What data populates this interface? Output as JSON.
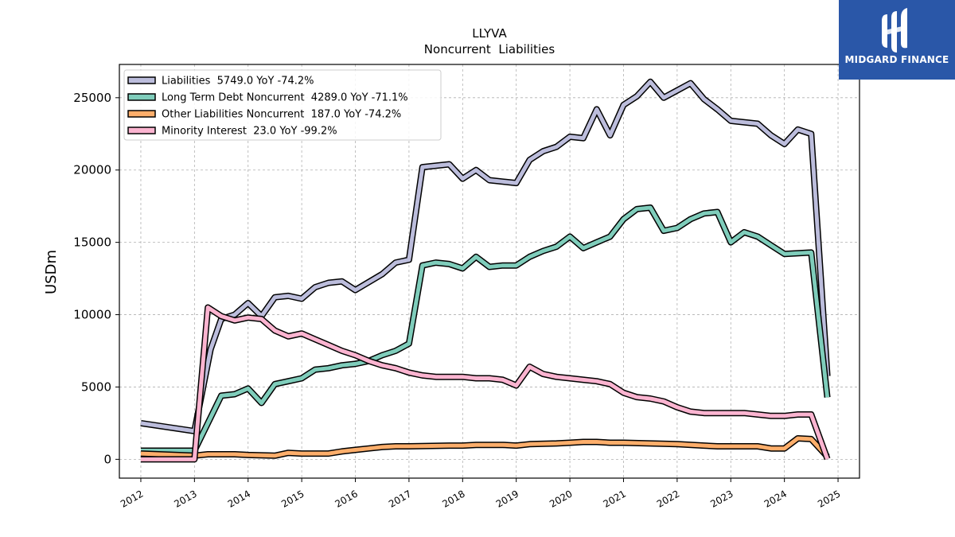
{
  "chart_data": {
    "type": "line",
    "title": "LLYVA",
    "subtitle": "Noncurrent  Liabilities",
    "ylabel": "USDm",
    "xlabel": "",
    "xlim": [
      2011.6,
      2025.4
    ],
    "ylim": [
      -1300,
      27300
    ],
    "x_ticks": [
      2012,
      2013,
      2014,
      2015,
      2016,
      2017,
      2018,
      2019,
      2020,
      2021,
      2022,
      2023,
      2024,
      2025
    ],
    "x_tick_labels": [
      "2012",
      "2013",
      "2014",
      "2015",
      "2016",
      "2017",
      "2018",
      "2019",
      "2020",
      "2021",
      "2022",
      "2023",
      "2024",
      "2025"
    ],
    "y_ticks": [
      0,
      5000,
      10000,
      15000,
      20000,
      25000
    ],
    "y_tick_labels": [
      "0",
      "5000",
      "10000",
      "15000",
      "20000",
      "25000"
    ],
    "grid": true,
    "legend_position": "top-left",
    "series": [
      {
        "name": "Liabilities",
        "legend_label": "Liabilities  5749.0 YoY -74.2%",
        "color": "#bcbddc",
        "points": [
          [
            2012.0,
            2500
          ],
          [
            2013.0,
            1950
          ],
          [
            2013.3,
            7600
          ],
          [
            2013.5,
            9700
          ],
          [
            2013.75,
            10000
          ],
          [
            2014.0,
            10800
          ],
          [
            2014.25,
            9900
          ],
          [
            2014.5,
            11200
          ],
          [
            2014.75,
            11300
          ],
          [
            2015.0,
            11100
          ],
          [
            2015.25,
            11900
          ],
          [
            2015.5,
            12200
          ],
          [
            2015.75,
            12300
          ],
          [
            2016.0,
            11700
          ],
          [
            2016.5,
            12800
          ],
          [
            2016.75,
            13600
          ],
          [
            2017.0,
            13800
          ],
          [
            2017.25,
            20200
          ],
          [
            2017.75,
            20400
          ],
          [
            2018.0,
            19400
          ],
          [
            2018.25,
            20000
          ],
          [
            2018.5,
            19300
          ],
          [
            2018.75,
            19200
          ],
          [
            2019.0,
            19100
          ],
          [
            2019.25,
            20700
          ],
          [
            2019.5,
            21300
          ],
          [
            2019.75,
            21600
          ],
          [
            2020.0,
            22300
          ],
          [
            2020.25,
            22200
          ],
          [
            2020.5,
            24200
          ],
          [
            2020.75,
            22400
          ],
          [
            2021.0,
            24500
          ],
          [
            2021.25,
            25100
          ],
          [
            2021.5,
            26100
          ],
          [
            2021.75,
            25000
          ],
          [
            2022.0,
            25500
          ],
          [
            2022.25,
            26000
          ],
          [
            2022.5,
            24900
          ],
          [
            2022.75,
            24200
          ],
          [
            2023.0,
            23400
          ],
          [
            2023.5,
            23200
          ],
          [
            2023.75,
            22400
          ],
          [
            2024.0,
            21800
          ],
          [
            2024.25,
            22800
          ],
          [
            2024.5,
            22500
          ],
          [
            2024.8,
            5749
          ]
        ]
      },
      {
        "name": "Long Term Debt Noncurrent",
        "legend_label": "Long Term Debt Noncurrent  4289.0 YoY -71.1%",
        "color": "#7fcdbb",
        "points": [
          [
            2012.0,
            600
          ],
          [
            2013.0,
            600
          ],
          [
            2013.25,
            2500
          ],
          [
            2013.5,
            4400
          ],
          [
            2013.75,
            4500
          ],
          [
            2014.0,
            4900
          ],
          [
            2014.25,
            3900
          ],
          [
            2014.5,
            5200
          ],
          [
            2014.75,
            5400
          ],
          [
            2015.0,
            5600
          ],
          [
            2015.25,
            6200
          ],
          [
            2015.5,
            6300
          ],
          [
            2015.75,
            6500
          ],
          [
            2016.0,
            6600
          ],
          [
            2016.25,
            6800
          ],
          [
            2016.5,
            7200
          ],
          [
            2016.75,
            7500
          ],
          [
            2017.0,
            8000
          ],
          [
            2017.25,
            13400
          ],
          [
            2017.5,
            13600
          ],
          [
            2017.75,
            13500
          ],
          [
            2018.0,
            13200
          ],
          [
            2018.25,
            14000
          ],
          [
            2018.5,
            13300
          ],
          [
            2018.75,
            13400
          ],
          [
            2019.0,
            13400
          ],
          [
            2019.25,
            14000
          ],
          [
            2019.5,
            14400
          ],
          [
            2019.75,
            14700
          ],
          [
            2020.0,
            15400
          ],
          [
            2020.25,
            14600
          ],
          [
            2020.5,
            15000
          ],
          [
            2020.75,
            15400
          ],
          [
            2021.0,
            16600
          ],
          [
            2021.25,
            17300
          ],
          [
            2021.5,
            17400
          ],
          [
            2021.75,
            15800
          ],
          [
            2022.0,
            16000
          ],
          [
            2022.25,
            16600
          ],
          [
            2022.5,
            17000
          ],
          [
            2022.75,
            17100
          ],
          [
            2023.0,
            15000
          ],
          [
            2023.25,
            15700
          ],
          [
            2023.5,
            15400
          ],
          [
            2023.75,
            14800
          ],
          [
            2024.0,
            14200
          ],
          [
            2024.5,
            14300
          ],
          [
            2024.8,
            4289
          ]
        ]
      },
      {
        "name": "Other Liabilities Noncurrent",
        "legend_label": "Other Liabilities Noncurrent  187.0 YoY -74.2%",
        "color": "#fdae6b",
        "points": [
          [
            2012.0,
            400
          ],
          [
            2013.0,
            250
          ],
          [
            2013.25,
            350
          ],
          [
            2013.75,
            350
          ],
          [
            2014.0,
            300
          ],
          [
            2014.5,
            250
          ],
          [
            2014.75,
            450
          ],
          [
            2015.0,
            400
          ],
          [
            2015.5,
            400
          ],
          [
            2015.75,
            550
          ],
          [
            2016.0,
            650
          ],
          [
            2016.25,
            750
          ],
          [
            2016.5,
            850
          ],
          [
            2016.75,
            900
          ],
          [
            2017.0,
            900
          ],
          [
            2017.75,
            950
          ],
          [
            2018.0,
            950
          ],
          [
            2018.25,
            1000
          ],
          [
            2018.75,
            1000
          ],
          [
            2019.0,
            950
          ],
          [
            2019.25,
            1050
          ],
          [
            2019.75,
            1100
          ],
          [
            2020.0,
            1150
          ],
          [
            2020.25,
            1200
          ],
          [
            2020.5,
            1200
          ],
          [
            2020.75,
            1150
          ],
          [
            2021.0,
            1150
          ],
          [
            2021.5,
            1100
          ],
          [
            2022.0,
            1050
          ],
          [
            2022.5,
            950
          ],
          [
            2022.75,
            900
          ],
          [
            2023.0,
            900
          ],
          [
            2023.5,
            900
          ],
          [
            2023.75,
            750
          ],
          [
            2024.0,
            750
          ],
          [
            2024.25,
            1450
          ],
          [
            2024.5,
            1400
          ],
          [
            2024.8,
            187
          ]
        ]
      },
      {
        "name": "Minority Interest",
        "legend_label": "Minority Interest  23.0 YoY -99.2%",
        "color": "#fbb4d0",
        "points": [
          [
            2012.0,
            0
          ],
          [
            2013.0,
            0
          ],
          [
            2013.25,
            10500
          ],
          [
            2013.5,
            9900
          ],
          [
            2013.75,
            9600
          ],
          [
            2014.0,
            9800
          ],
          [
            2014.25,
            9700
          ],
          [
            2014.5,
            8900
          ],
          [
            2014.75,
            8500
          ],
          [
            2015.0,
            8700
          ],
          [
            2015.25,
            8300
          ],
          [
            2015.5,
            7900
          ],
          [
            2015.75,
            7500
          ],
          [
            2016.0,
            7200
          ],
          [
            2016.25,
            6800
          ],
          [
            2016.5,
            6500
          ],
          [
            2016.75,
            6300
          ],
          [
            2017.0,
            6000
          ],
          [
            2017.25,
            5800
          ],
          [
            2017.5,
            5700
          ],
          [
            2018.0,
            5700
          ],
          [
            2018.25,
            5600
          ],
          [
            2018.5,
            5600
          ],
          [
            2018.75,
            5500
          ],
          [
            2019.0,
            5100
          ],
          [
            2019.25,
            6400
          ],
          [
            2019.5,
            5900
          ],
          [
            2019.75,
            5700
          ],
          [
            2020.0,
            5600
          ],
          [
            2020.25,
            5500
          ],
          [
            2020.5,
            5400
          ],
          [
            2020.75,
            5200
          ],
          [
            2021.0,
            4600
          ],
          [
            2021.25,
            4300
          ],
          [
            2021.5,
            4200
          ],
          [
            2021.75,
            4000
          ],
          [
            2022.0,
            3600
          ],
          [
            2022.25,
            3300
          ],
          [
            2022.5,
            3200
          ],
          [
            2022.75,
            3200
          ],
          [
            2023.0,
            3200
          ],
          [
            2023.25,
            3200
          ],
          [
            2023.5,
            3100
          ],
          [
            2023.75,
            3000
          ],
          [
            2024.0,
            3000
          ],
          [
            2024.25,
            3100
          ],
          [
            2024.5,
            3100
          ],
          [
            2024.8,
            23
          ]
        ]
      }
    ]
  },
  "brand": {
    "name": "MIDGARD FINANCE",
    "color": "#2a57a8",
    "icon": "midgard-logo-icon"
  }
}
